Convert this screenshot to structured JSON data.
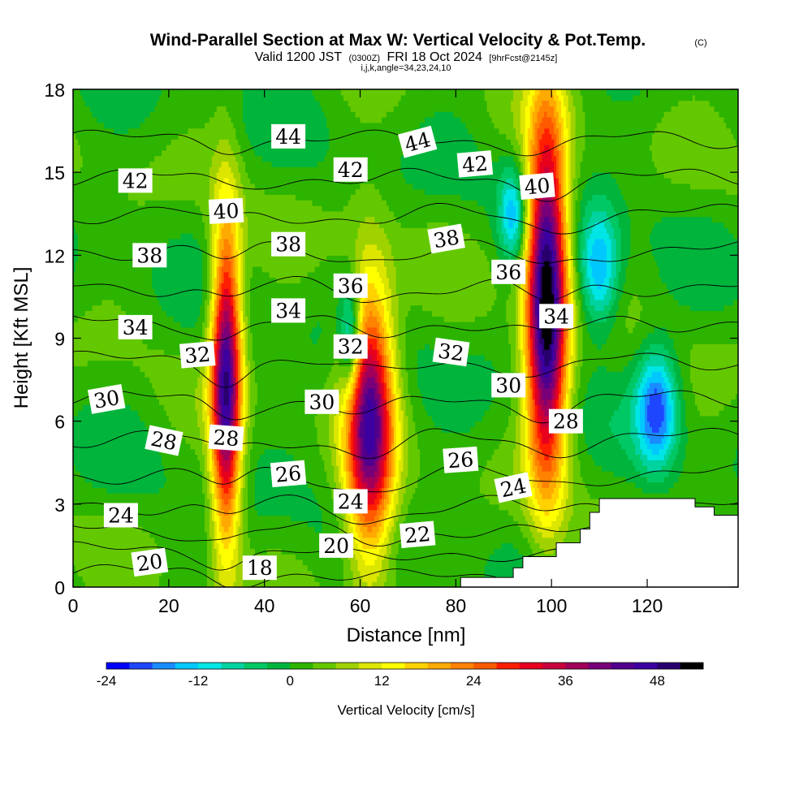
{
  "title": {
    "main": "Wind-Parallel Section at Max W: Vertical Velocity & Pot.Temp.",
    "copyright": "(C)",
    "valid_prefix": "Valid 1200 JST",
    "valid_utc": "(0300Z)",
    "valid_date": "FRI 18 Oct 2024",
    "forecast": "[9hrFcst@2145z]",
    "indices": "i,j,k,angle=34,23,24,10"
  },
  "colors": {
    "frame": "#000000",
    "background": "#ffffff",
    "terrain": "#ffffff",
    "contour_line": "#000000"
  },
  "chart_data": {
    "type": "heatmap",
    "xlabel": "Distance [nm]",
    "ylabel": "Height [Kft MSL]",
    "xlim": [
      0,
      139
    ],
    "ylim": [
      0,
      18
    ],
    "x_ticks": [
      0,
      20,
      40,
      60,
      80,
      100,
      120
    ],
    "y_ticks": [
      0,
      3,
      6,
      9,
      12,
      15,
      18
    ],
    "grid": false,
    "colorbar": {
      "title": "Vertical Velocity [cm/s]",
      "tick_values": [
        -24,
        -12,
        0,
        12,
        24,
        36,
        48
      ],
      "min": -24,
      "max": 54,
      "step": 3,
      "colors": [
        "#0000ff",
        "#1e46ff",
        "#1a8cff",
        "#00c8ff",
        "#00e6e6",
        "#00d2a0",
        "#00c864",
        "#00b43c",
        "#2db400",
        "#64c800",
        "#a0d200",
        "#dce600",
        "#ffff00",
        "#ffd200",
        "#ffaa00",
        "#ff8200",
        "#ff5a00",
        "#ff1e00",
        "#e6001e",
        "#c8003c",
        "#a0005a",
        "#780078",
        "#50008c",
        "#3c00a0",
        "#28006e",
        "#000000"
      ],
      "position": "bottom"
    },
    "terrain_profile": [
      [
        81,
        0.35
      ],
      [
        82,
        0.35
      ],
      [
        92,
        0.35
      ],
      [
        92,
        0.7
      ],
      [
        94,
        0.7
      ],
      [
        94,
        1.1
      ],
      [
        101,
        1.1
      ],
      [
        101,
        1.6
      ],
      [
        106,
        1.6
      ],
      [
        106,
        2.1
      ],
      [
        108,
        2.1
      ],
      [
        108,
        2.7
      ],
      [
        110,
        2.7
      ],
      [
        110,
        3.2
      ],
      [
        130,
        3.2
      ],
      [
        130,
        2.9
      ],
      [
        134,
        2.9
      ],
      [
        134,
        2.6
      ],
      [
        139,
        2.6
      ]
    ],
    "updrafts": [
      {
        "x_center": 32,
        "z_center": 7.5,
        "peak_w": 45,
        "x_width": 2.2,
        "z_width": 4.0
      },
      {
        "x_center": 62,
        "z_center": 6.0,
        "peak_w": 42,
        "x_width": 3.5,
        "z_width": 3.5
      },
      {
        "x_center": 99,
        "z_center": 10.5,
        "peak_w": 54,
        "x_width": 3.0,
        "z_width": 4.5
      }
    ],
    "downdrafts": [
      {
        "x_center": 122,
        "z_center": 6.5,
        "peak_w": -21,
        "x_width": 3.0,
        "z_width": 1.5
      },
      {
        "x_center": 110,
        "z_center": 11.5,
        "peak_w": -18,
        "x_width": 3.0,
        "z_width": 1.5
      },
      {
        "x_center": 92,
        "z_center": 13.5,
        "peak_w": -15,
        "x_width": 2.0,
        "z_width": 1.2
      },
      {
        "x_center": 58,
        "z_center": 9.0,
        "peak_w": -18,
        "x_width": 1.5,
        "z_width": 1.5
      }
    ],
    "theta_contours": [
      {
        "level": 18,
        "height_kft": 0.5
      },
      {
        "level": 20,
        "height_kft": 1.3
      },
      {
        "level": 22,
        "height_kft": 2.1
      },
      {
        "level": 24,
        "height_kft": 3.0
      },
      {
        "level": 26,
        "height_kft": 4.1
      },
      {
        "level": 28,
        "height_kft": 5.4
      },
      {
        "level": 30,
        "height_kft": 6.8
      },
      {
        "level": 32,
        "height_kft": 8.2
      },
      {
        "level": 34,
        "height_kft": 9.6
      },
      {
        "level": 36,
        "height_kft": 10.9
      },
      {
        "level": 38,
        "height_kft": 12.2
      },
      {
        "level": 40,
        "height_kft": 13.5
      },
      {
        "level": 42,
        "height_kft": 14.8
      },
      {
        "level": 44,
        "height_kft": 16.2
      }
    ],
    "contour_labels": [
      {
        "text": "18",
        "x": 39,
        "z": 0.7,
        "angle": 0
      },
      {
        "text": "20",
        "x": 16,
        "z": 0.9,
        "angle": -8
      },
      {
        "text": "20",
        "x": 55,
        "z": 1.5,
        "angle": 0
      },
      {
        "text": "22",
        "x": 72,
        "z": 1.9,
        "angle": -5
      },
      {
        "text": "24",
        "x": 10,
        "z": 2.6,
        "angle": 0
      },
      {
        "text": "24",
        "x": 58,
        "z": 3.1,
        "angle": 0
      },
      {
        "text": "24",
        "x": 92,
        "z": 3.6,
        "angle": -12
      },
      {
        "text": "26",
        "x": 45,
        "z": 4.1,
        "angle": -5
      },
      {
        "text": "26",
        "x": 81,
        "z": 4.6,
        "angle": -4
      },
      {
        "text": "28",
        "x": 19,
        "z": 5.3,
        "angle": 12
      },
      {
        "text": "28",
        "x": 32,
        "z": 5.4,
        "angle": 4
      },
      {
        "text": "28",
        "x": 103,
        "z": 6.0,
        "angle": 0
      },
      {
        "text": "30",
        "x": 7,
        "z": 6.8,
        "angle": -10
      },
      {
        "text": "30",
        "x": 52,
        "z": 6.7,
        "angle": 0
      },
      {
        "text": "30",
        "x": 91,
        "z": 7.3,
        "angle": 0
      },
      {
        "text": "32",
        "x": 26,
        "z": 8.4,
        "angle": -5
      },
      {
        "text": "32",
        "x": 58,
        "z": 8.7,
        "angle": 0
      },
      {
        "text": "32",
        "x": 79,
        "z": 8.5,
        "angle": 8
      },
      {
        "text": "34",
        "x": 13,
        "z": 9.4,
        "angle": 0
      },
      {
        "text": "34",
        "x": 45,
        "z": 10.0,
        "angle": 0
      },
      {
        "text": "34",
        "x": 101,
        "z": 9.8,
        "angle": 0
      },
      {
        "text": "36",
        "x": 58,
        "z": 10.9,
        "angle": 0
      },
      {
        "text": "36",
        "x": 91,
        "z": 11.4,
        "angle": 0
      },
      {
        "text": "38",
        "x": 16,
        "z": 12.0,
        "angle": 0
      },
      {
        "text": "38",
        "x": 45,
        "z": 12.4,
        "angle": 0
      },
      {
        "text": "38",
        "x": 78,
        "z": 12.6,
        "angle": -10
      },
      {
        "text": "40",
        "x": 32,
        "z": 13.6,
        "angle": -3
      },
      {
        "text": "40",
        "x": 97,
        "z": 14.5,
        "angle": -5
      },
      {
        "text": "42",
        "x": 13,
        "z": 14.7,
        "angle": 0
      },
      {
        "text": "42",
        "x": 58,
        "z": 15.1,
        "angle": 0
      },
      {
        "text": "42",
        "x": 84,
        "z": 15.3,
        "angle": -5
      },
      {
        "text": "44",
        "x": 45,
        "z": 16.3,
        "angle": 0
      },
      {
        "text": "44",
        "x": 72,
        "z": 16.1,
        "angle": -15
      }
    ]
  }
}
